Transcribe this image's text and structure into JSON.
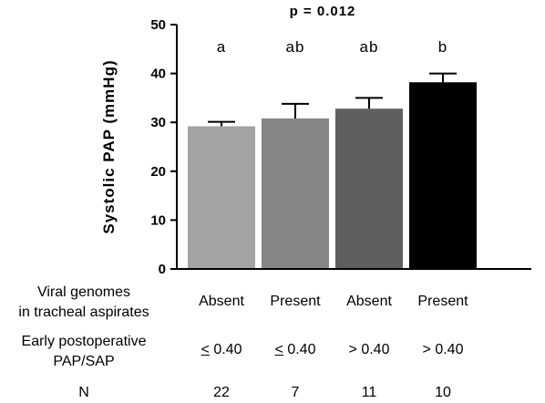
{
  "chart_data": {
    "type": "bar",
    "title": "p = 0.012",
    "ylabel": "Systolic PAP (mmHg)",
    "ylim": [
      0,
      50
    ],
    "yticks": [
      "0",
      "10",
      "20",
      "30",
      "40",
      "50"
    ],
    "categories": [
      "Absent / ≤ 0.40",
      "Present / ≤ 0.40",
      "Absent / > 0.40",
      "Present / > 0.40"
    ],
    "values": [
      29.2,
      30.8,
      32.8,
      38.2
    ],
    "errors": [
      0.9,
      3.0,
      2.2,
      1.8
    ],
    "significance_letters": [
      "a",
      "ab",
      "ab",
      "b"
    ],
    "bar_colors": [
      "#a3a3a3",
      "#868686",
      "#5f5f5f",
      "#000000"
    ]
  },
  "table": {
    "rows": [
      {
        "label_lines": [
          "Viral genomes",
          "in tracheal aspirates"
        ],
        "cells": [
          {
            "prefix": "",
            "text": "Absent"
          },
          {
            "prefix": "",
            "text": "Present"
          },
          {
            "prefix": "",
            "text": "Absent"
          },
          {
            "prefix": "",
            "text": "Present"
          }
        ]
      },
      {
        "label_lines": [
          "Early postoperative",
          "PAP/SAP"
        ],
        "cells": [
          {
            "prefix": "<",
            "text": " 0.40"
          },
          {
            "prefix": "<",
            "text": " 0.40"
          },
          {
            "prefix": "",
            "text": "> 0.40"
          },
          {
            "prefix": "",
            "text": "> 0.40"
          }
        ]
      },
      {
        "label_lines": [
          "N"
        ],
        "cells": [
          {
            "prefix": "",
            "text": "22"
          },
          {
            "prefix": "",
            "text": "7"
          },
          {
            "prefix": "",
            "text": "11"
          },
          {
            "prefix": "",
            "text": "10"
          }
        ]
      }
    ]
  }
}
